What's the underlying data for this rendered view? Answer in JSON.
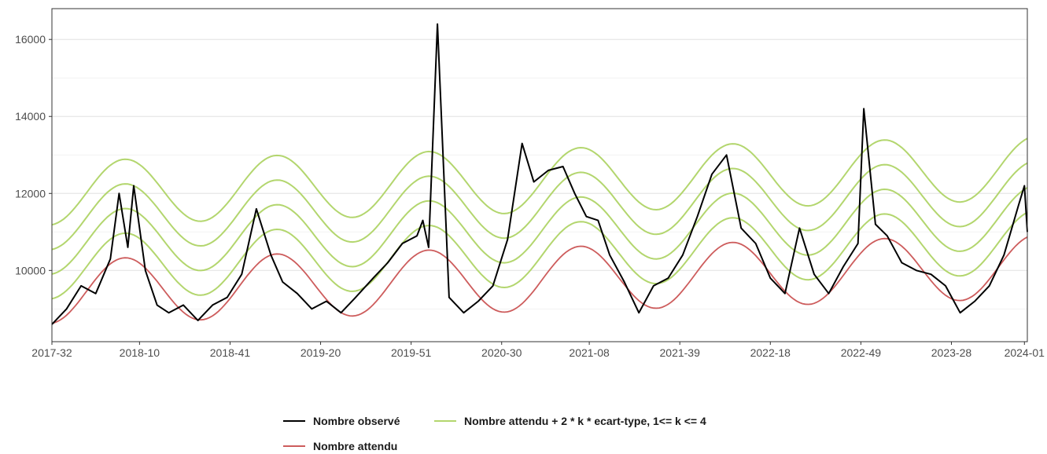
{
  "chart_data": {
    "type": "line",
    "x_axis": {
      "kind": "iso-week",
      "range": [
        "2017-32",
        "2024-02"
      ],
      "tick_labels": [
        "2017-32",
        "2018-10",
        "2018-41",
        "2019-20",
        "2019-51",
        "2020-30",
        "2021-08",
        "2021-39",
        "2022-18",
        "2022-49",
        "2023-28",
        "2024-01"
      ]
    },
    "y_axis": {
      "range": [
        8150,
        16800
      ],
      "ticks": [
        10000,
        12000,
        14000,
        16000
      ],
      "minor_ticks": [
        9000,
        11000,
        13000,
        15000
      ]
    },
    "grid": true,
    "legend_position": "bottom",
    "series": [
      {
        "name": "Nombre observé",
        "role": "observed",
        "color": "#000000",
        "x": [
          "2017-32",
          "2017-37",
          "2017-42",
          "2017-47",
          "2017-52",
          "2018-03",
          "2018-06",
          "2018-08",
          "2018-12",
          "2018-16",
          "2018-20",
          "2018-25",
          "2018-30",
          "2018-35",
          "2018-40",
          "2018-45",
          "2018-50",
          "2019-03",
          "2019-07",
          "2019-12",
          "2019-17",
          "2019-22",
          "2019-27",
          "2019-32",
          "2019-38",
          "2019-43",
          "2019-48",
          "2020-01",
          "2020-03",
          "2020-05",
          "2020-08",
          "2020-12",
          "2020-17",
          "2020-22",
          "2020-27",
          "2020-32",
          "2020-37",
          "2020-41",
          "2020-46",
          "2020-51",
          "2021-03",
          "2021-07",
          "2021-11",
          "2021-15",
          "2021-20",
          "2021-25",
          "2021-30",
          "2021-35",
          "2021-40",
          "2021-45",
          "2021-50",
          "2022-03",
          "2022-08",
          "2022-13",
          "2022-18",
          "2022-23",
          "2022-28",
          "2022-33",
          "2022-38",
          "2022-43",
          "2022-48",
          "2022-50",
          "2023-02",
          "2023-06",
          "2023-11",
          "2023-16",
          "2023-21",
          "2023-26",
          "2023-31",
          "2023-36",
          "2023-41",
          "2023-46",
          "2023-51",
          "2024-01",
          "2024-02"
        ],
        "y": [
          8600,
          9000,
          9600,
          9400,
          10300,
          12000,
          10600,
          12200,
          10000,
          9100,
          8900,
          9100,
          8700,
          9100,
          9300,
          9900,
          11600,
          10400,
          9700,
          9400,
          9000,
          9200,
          8900,
          9300,
          9800,
          10200,
          10700,
          10900,
          11300,
          10600,
          16400,
          9300,
          8900,
          9200,
          9600,
          10800,
          13300,
          12300,
          12600,
          12700,
          12000,
          11400,
          11300,
          10400,
          9700,
          8900,
          9600,
          9800,
          10400,
          11400,
          12500,
          13000,
          11100,
          10700,
          9800,
          9400,
          11100,
          9900,
          9400,
          10100,
          10700,
          14200,
          11200,
          10900,
          10200,
          10000,
          9900,
          9600,
          8900,
          9200,
          9600,
          10400,
          11700,
          12200,
          11000
        ]
      },
      {
        "name": "Nombre attendu",
        "role": "expected",
        "color": "#cd5c5c",
        "baseline": 9450,
        "trend_per_year": 100,
        "amplitude": 830,
        "cycle_weeks": 52,
        "peak_week": "2018-05"
      },
      {
        "name": "Nombre attendu + 2 * k * ecart-type, 1<= k <= 4",
        "role": "threshold",
        "color": "#b3d66e",
        "k_values": [
          1,
          2,
          3,
          4
        ],
        "step": 640
      }
    ]
  },
  "legend": {
    "observed": "Nombre observé",
    "threshold": "Nombre attendu + 2 * k * ecart-type, 1<= k <= 4",
    "expected": "Nombre attendu"
  }
}
